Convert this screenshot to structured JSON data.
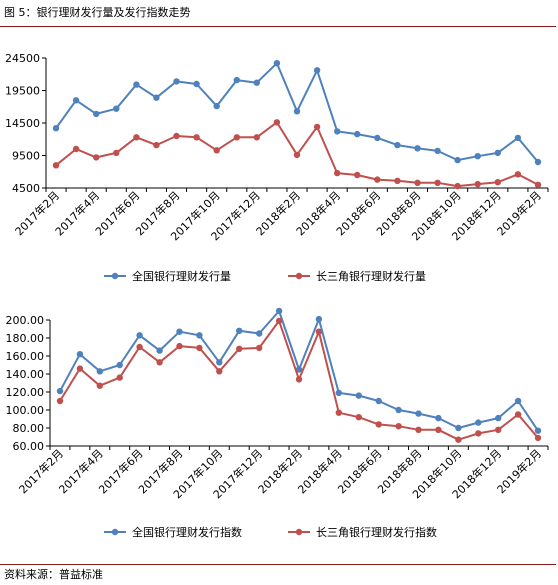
{
  "figure": {
    "title": "图 5：银行理财发行量及发行指数走势",
    "source": "资料来源：普益标准"
  },
  "colors": {
    "series_blue": "#4f81bd",
    "series_red": "#c0504d",
    "rule": "#8b1a1a",
    "axis": "#000000"
  },
  "chart_data": [
    {
      "type": "line",
      "title": "",
      "xlabel": "",
      "ylabel": "",
      "ylim": [
        4500,
        24500
      ],
      "yticks": [
        "24500",
        "19500",
        "14500",
        "9500",
        "4500"
      ],
      "grid": false,
      "legend_position": "bottom",
      "x": [
        "2017年2月",
        "2017年3月",
        "2017年4月",
        "2017年5月",
        "2017年6月",
        "2017年7月",
        "2017年8月",
        "2017年9月",
        "2017年10月",
        "2017年11月",
        "2017年12月",
        "2018年1月",
        "2018年2月",
        "2018年3月",
        "2018年4月",
        "2018年5月",
        "2018年6月",
        "2018年7月",
        "2018年8月",
        "2018年9月",
        "2018年10月",
        "2018年11月",
        "2018年12月",
        "2019年1月",
        "2019年2月"
      ],
      "xtick_labels": [
        "2017年2月",
        "2017年4月",
        "2017年6月",
        "2017年8月",
        "2017年10月",
        "2017年12月",
        "2018年2月",
        "2018年4月",
        "2018年6月",
        "2018年8月",
        "2018年10月",
        "2018年12月",
        "2019年2月"
      ],
      "series": [
        {
          "name": "全国银行理财发行量",
          "color": "#4f81bd",
          "values": [
            13700,
            18000,
            15900,
            16700,
            20400,
            18400,
            20900,
            20500,
            17100,
            21100,
            20700,
            23700,
            16300,
            22600,
            13200,
            12800,
            12200,
            11100,
            10600,
            10200,
            8800,
            9400,
            9900,
            12200,
            8500
          ]
        },
        {
          "name": "长三角银行理财发行量",
          "color": "#c0504d",
          "values": [
            8000,
            10500,
            9200,
            9900,
            12300,
            11100,
            12500,
            12300,
            10300,
            12300,
            12300,
            14600,
            9600,
            13900,
            6800,
            6500,
            5800,
            5600,
            5300,
            5300,
            4800,
            5100,
            5400,
            6600,
            5000
          ]
        }
      ]
    },
    {
      "type": "line",
      "title": "",
      "xlabel": "",
      "ylabel": "",
      "ylim": [
        60,
        200
      ],
      "yticks": [
        "200.00",
        "180.00",
        "160.00",
        "140.00",
        "120.00",
        "100.00",
        "80.00",
        "60.00"
      ],
      "grid": false,
      "legend_position": "bottom",
      "x": [
        "2017年2月",
        "2017年3月",
        "2017年4月",
        "2017年5月",
        "2017年6月",
        "2017年7月",
        "2017年8月",
        "2017年9月",
        "2017年10月",
        "2017年11月",
        "2017年12月",
        "2018年1月",
        "2018年2月",
        "2018年3月",
        "2018年4月",
        "2018年5月",
        "2018年6月",
        "2018年7月",
        "2018年8月",
        "2018年9月",
        "2018年10月",
        "2018年11月",
        "2018年12月",
        "2019年1月",
        "2019年2月"
      ],
      "xtick_labels": [
        "2017年2月",
        "2017年4月",
        "2017年6月",
        "2017年8月",
        "2017年10月",
        "2017年12月",
        "2018年2月",
        "2018年4月",
        "2018年6月",
        "2018年8月",
        "2018年10月",
        "2018年12月",
        "2019年2月"
      ],
      "series": [
        {
          "name": "全国银行理财发行指数",
          "color": "#4f81bd",
          "values": [
            121,
            162,
            143,
            150,
            183,
            166,
            187,
            183,
            153,
            188,
            185,
            210,
            145,
            201,
            119,
            116,
            110,
            100,
            96,
            91,
            80,
            86,
            91,
            110,
            77
          ]
        },
        {
          "name": "长三角银行理财发行指数",
          "color": "#c0504d",
          "values": [
            110,
            146,
            127,
            136,
            170,
            153,
            171,
            169,
            143,
            168,
            169,
            199,
            134,
            187,
            97,
            92,
            84,
            82,
            78,
            78,
            67,
            74,
            78,
            95,
            69
          ]
        }
      ]
    }
  ]
}
